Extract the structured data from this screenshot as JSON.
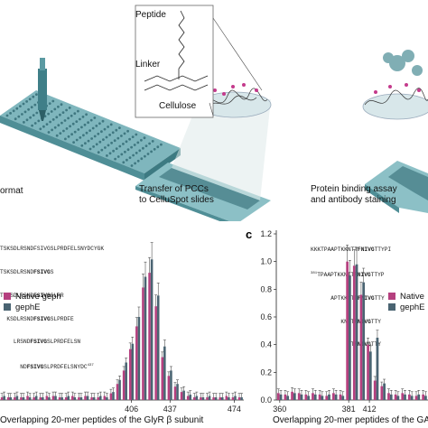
{
  "top": {
    "peptide_label": "Peptide",
    "linker_label": "Linker",
    "cellulose_label": "Cellulose",
    "caption_left": "ormat",
    "caption_mid": [
      "Transfer of PCCs",
      "to CelluSpot slides"
    ],
    "caption_right": [
      "Protein binding assay",
      "and antibody staining"
    ]
  },
  "panel_b": {
    "sequences": [
      {
        "pre": "TSKSDLRSNDFSIVGSLPRDFELSNYDCYGK",
        "bold": "",
        "post": ""
      },
      {
        "pre": "TSKSDLRSND",
        "bold": "FSIVG",
        "post": "S"
      },
      {
        "pre": "TSKSDLRSND",
        "bold": "FSIVG",
        "post": "SLPR"
      },
      {
        "pre": "  KSDLRSND",
        "bold": "FSIVG",
        "post": "SLPRDFE"
      },
      {
        "pre": "    LRSND",
        "bold": "FSIVG",
        "post": "SLPRDFELSN"
      },
      {
        "pre": "      ND",
        "bold": "FSIVG",
        "post": "SLPRDFELSNYDC"
      }
    ],
    "superscript": "437",
    "xlabel": "Overlapping 20-mer peptides of the GlyR β subunit"
  },
  "panel_c": {
    "letter": "c",
    "sequences": [
      {
        "pre": "KKKTPAAPTKKNTT",
        "bold": "FNIVG",
        "post": "TTYPI"
      },
      {
        "pre": "381",
        "mid": "TPAAPTKKNTT",
        "bold": "FNIVG",
        "post": "TTYP"
      },
      {
        "pre": "      APTKKNTT",
        "bold": "FNIVG",
        "post": "TTY"
      },
      {
        "pre": "         KNTT",
        "bold": "FNIVG",
        "post": "TTY"
      },
      {
        "pre": "           TT",
        "bold": "FNIVG",
        "post": "TTY"
      }
    ],
    "xlabel": "Overlapping 20-mer peptides of the GA"
  },
  "colors": {
    "native": "#b5407f",
    "gephE": "#4a6472"
  },
  "chart_data": [
    {
      "type": "bar",
      "title": "",
      "xlabel": "Overlapping 20-mer peptides of the GlyR β subunit",
      "ylabel": "",
      "xticks": [
        "406",
        "437",
        "474"
      ],
      "legend": "upper-left",
      "series": [
        {
          "name": "Native geph",
          "values": [
            0.02,
            0.02,
            0.02,
            0.02,
            0.03,
            0.02,
            0.02,
            0.03,
            0.03,
            0.02,
            0.02,
            0.03,
            0.02,
            0.03,
            0.02,
            0.02,
            0.03,
            0.05,
            0.12,
            0.22,
            0.38,
            0.55,
            0.84,
            0.95,
            0.7,
            0.32,
            0.18,
            0.1,
            0.06,
            0.03,
            0.02,
            0.02,
            0.02,
            0.02,
            0.02,
            0.03,
            0.02,
            0.02
          ]
        },
        {
          "name": "gephE",
          "values": [
            0.03,
            0.02,
            0.03,
            0.02,
            0.02,
            0.03,
            0.02,
            0.02,
            0.03,
            0.02,
            0.03,
            0.02,
            0.02,
            0.03,
            0.02,
            0.03,
            0.02,
            0.06,
            0.15,
            0.28,
            0.42,
            0.62,
            0.92,
            1.05,
            0.78,
            0.4,
            0.22,
            0.12,
            0.07,
            0.04,
            0.03,
            0.02,
            0.03,
            0.02,
            0.02,
            0.02,
            0.03,
            0.02
          ]
        }
      ]
    },
    {
      "type": "bar",
      "title": "",
      "xlabel": "Overlapping 20-mer peptides of the GA",
      "ylabel": "",
      "ylim": [
        0,
        1.2
      ],
      "yticks": [
        "0.0",
        "0.2",
        "0.4",
        "0.6",
        "0.8",
        "1.0",
        "1.2"
      ],
      "xticks": [
        "360",
        "381",
        "412"
      ],
      "legend": "upper-right",
      "series": [
        {
          "name": "Native",
          "values": [
            0.05,
            0.04,
            0.06,
            0.05,
            0.04,
            0.05,
            0.04,
            0.03,
            0.05,
            0.04,
            1.0,
            0.97,
            0.76,
            0.4,
            0.14,
            0.1,
            0.05,
            0.04,
            0.05,
            0.04,
            0.03,
            0.04
          ]
        },
        {
          "name": "gephE",
          "values": [
            0.04,
            0.03,
            0.05,
            0.04,
            0.03,
            0.04,
            0.03,
            0.04,
            0.04,
            0.03,
            0.9,
            0.98,
            0.85,
            0.35,
            0.45,
            0.12,
            0.04,
            0.03,
            0.04,
            0.03,
            0.04,
            0.03
          ]
        }
      ]
    }
  ]
}
